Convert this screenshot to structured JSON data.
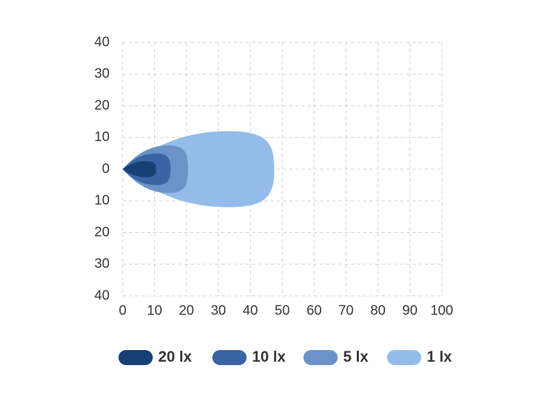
{
  "chart_data": {
    "type": "beam",
    "series": [
      {
        "name": "20 lx",
        "color": "#163f74",
        "reach": 10.5,
        "half_width": 2.5
      },
      {
        "name": "10 lx",
        "color": "#3a64a4",
        "reach": 15,
        "half_width": 5
      },
      {
        "name": "5 lx",
        "color": "#6b93c9",
        "reach": 20.5,
        "half_width": 7.5
      },
      {
        "name": "1 lx",
        "color": "#93bde8",
        "reach": 47.5,
        "half_width": 12
      }
    ],
    "xlim": [
      0,
      100
    ],
    "xticks": [
      0,
      10,
      20,
      30,
      40,
      50,
      60,
      70,
      80,
      90,
      100
    ],
    "ylim": [
      -40,
      40
    ],
    "yticks": [
      40,
      30,
      20,
      10,
      0,
      {
        "value": -10,
        "label": "10"
      },
      {
        "value": -20,
        "label": "20"
      },
      {
        "value": -30,
        "label": "30"
      },
      {
        "value": -40,
        "label": "40"
      }
    ],
    "grid": true
  }
}
